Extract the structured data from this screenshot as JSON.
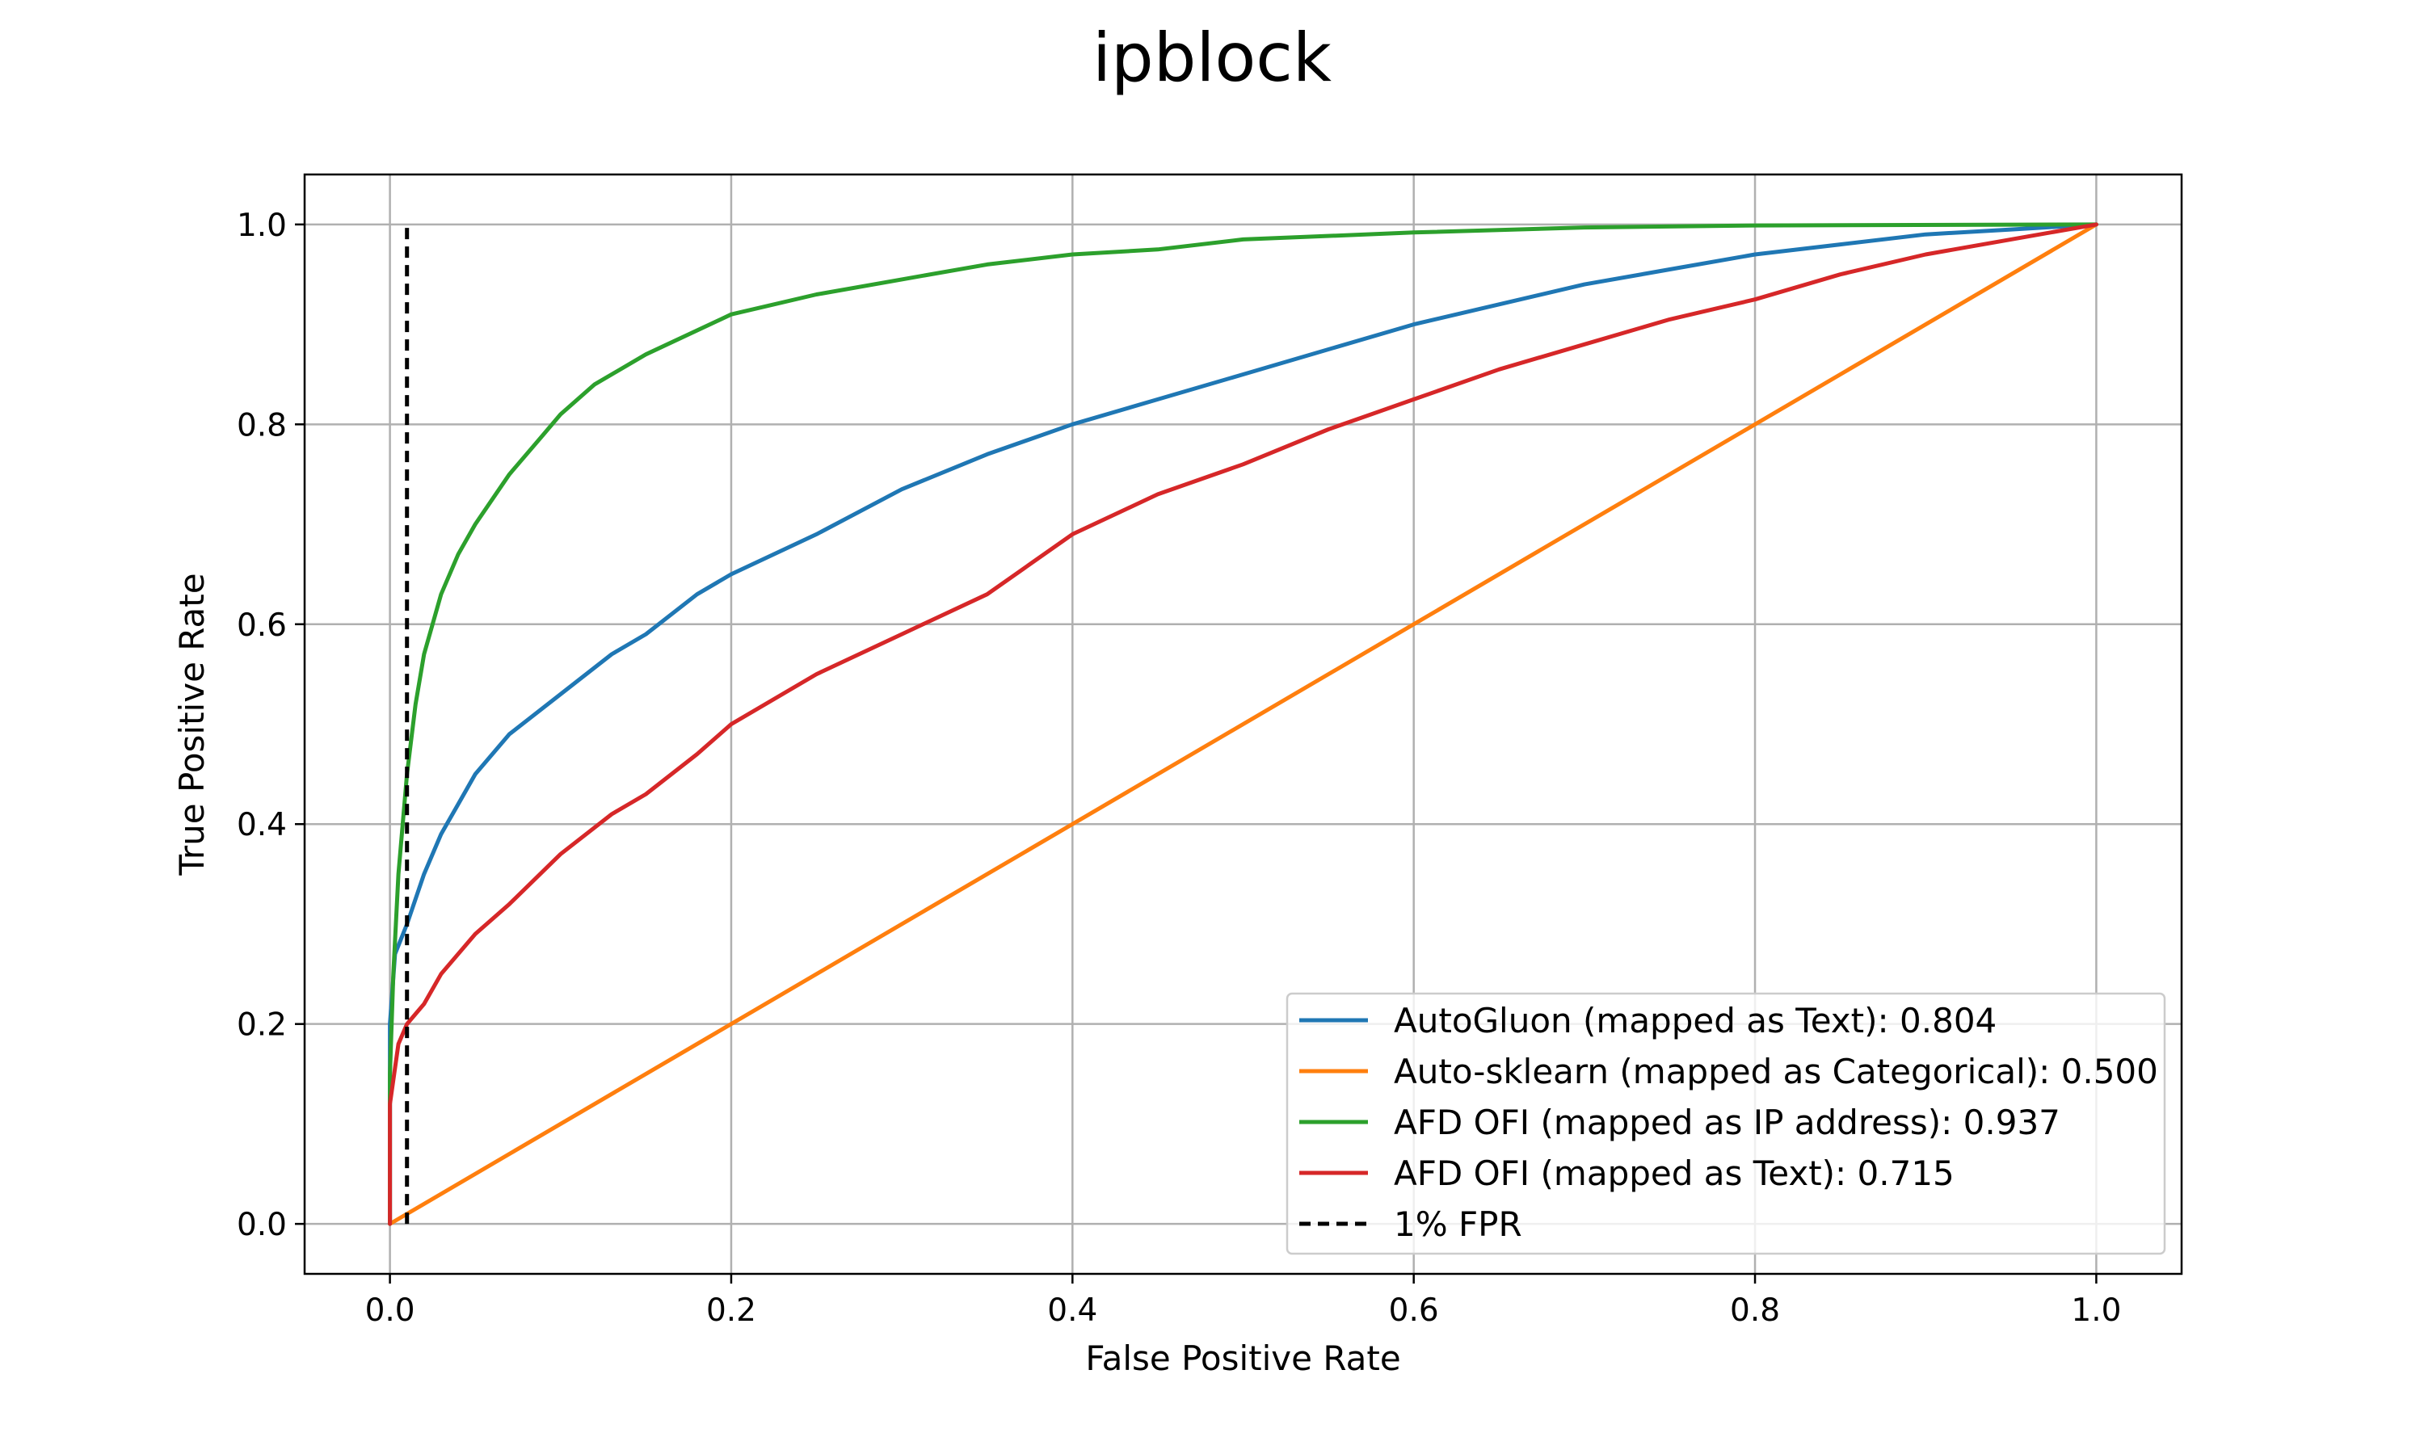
{
  "chart_data": {
    "type": "line",
    "title": "ipblock",
    "xlabel": "False Positive Rate",
    "ylabel": "True Positive Rate",
    "xlim": [
      -0.05,
      1.05
    ],
    "ylim": [
      -0.05,
      1.05
    ],
    "xticks": [
      "0.0",
      "0.2",
      "0.4",
      "0.6",
      "0.8",
      "1.0"
    ],
    "yticks": [
      "0.0",
      "0.2",
      "0.4",
      "0.6",
      "0.8",
      "1.0"
    ],
    "grid": true,
    "legend_position": "lower-right",
    "series": [
      {
        "name": "AutoGluon (mapped as Text): 0.804",
        "color": "#1f77b4",
        "points": [
          [
            0,
            0
          ],
          [
            0,
            0.2
          ],
          [
            0.003,
            0.27
          ],
          [
            0.01,
            0.3
          ],
          [
            0.02,
            0.35
          ],
          [
            0.03,
            0.39
          ],
          [
            0.04,
            0.42
          ],
          [
            0.05,
            0.45
          ],
          [
            0.07,
            0.49
          ],
          [
            0.1,
            0.53
          ],
          [
            0.13,
            0.57
          ],
          [
            0.15,
            0.59
          ],
          [
            0.18,
            0.63
          ],
          [
            0.2,
            0.65
          ],
          [
            0.25,
            0.69
          ],
          [
            0.3,
            0.735
          ],
          [
            0.35,
            0.77
          ],
          [
            0.4,
            0.8
          ],
          [
            0.45,
            0.825
          ],
          [
            0.5,
            0.85
          ],
          [
            0.55,
            0.875
          ],
          [
            0.6,
            0.9
          ],
          [
            0.65,
            0.92
          ],
          [
            0.7,
            0.94
          ],
          [
            0.75,
            0.955
          ],
          [
            0.8,
            0.97
          ],
          [
            0.85,
            0.98
          ],
          [
            0.9,
            0.99
          ],
          [
            0.95,
            0.995
          ],
          [
            1,
            1
          ]
        ]
      },
      {
        "name": "Auto-sklearn (mapped as Categorical): 0.500",
        "color": "#ff7f0e",
        "points": [
          [
            0,
            0
          ],
          [
            1,
            1
          ]
        ]
      },
      {
        "name": "AFD OFI (mapped as IP address): 0.937",
        "color": "#2ca02c",
        "points": [
          [
            0,
            0
          ],
          [
            0,
            0.15
          ],
          [
            0.002,
            0.25
          ],
          [
            0.005,
            0.35
          ],
          [
            0.01,
            0.45
          ],
          [
            0.015,
            0.52
          ],
          [
            0.02,
            0.57
          ],
          [
            0.03,
            0.63
          ],
          [
            0.04,
            0.67
          ],
          [
            0.05,
            0.7
          ],
          [
            0.07,
            0.75
          ],
          [
            0.09,
            0.79
          ],
          [
            0.1,
            0.81
          ],
          [
            0.12,
            0.84
          ],
          [
            0.15,
            0.87
          ],
          [
            0.2,
            0.91
          ],
          [
            0.25,
            0.93
          ],
          [
            0.3,
            0.945
          ],
          [
            0.35,
            0.96
          ],
          [
            0.4,
            0.97
          ],
          [
            0.45,
            0.975
          ],
          [
            0.5,
            0.985
          ],
          [
            0.6,
            0.992
          ],
          [
            0.7,
            0.997
          ],
          [
            0.8,
            0.999
          ],
          [
            1,
            1
          ]
        ]
      },
      {
        "name": "AFD OFI (mapped as Text): 0.715",
        "color": "#d62728",
        "points": [
          [
            0,
            0
          ],
          [
            0,
            0.12
          ],
          [
            0.005,
            0.18
          ],
          [
            0.01,
            0.2
          ],
          [
            0.02,
            0.22
          ],
          [
            0.03,
            0.25
          ],
          [
            0.05,
            0.29
          ],
          [
            0.07,
            0.32
          ],
          [
            0.1,
            0.37
          ],
          [
            0.13,
            0.41
          ],
          [
            0.15,
            0.43
          ],
          [
            0.18,
            0.47
          ],
          [
            0.2,
            0.5
          ],
          [
            0.25,
            0.55
          ],
          [
            0.3,
            0.59
          ],
          [
            0.35,
            0.63
          ],
          [
            0.4,
            0.69
          ],
          [
            0.45,
            0.73
          ],
          [
            0.5,
            0.76
          ],
          [
            0.55,
            0.795
          ],
          [
            0.6,
            0.825
          ],
          [
            0.65,
            0.855
          ],
          [
            0.7,
            0.88
          ],
          [
            0.75,
            0.905
          ],
          [
            0.8,
            0.925
          ],
          [
            0.85,
            0.95
          ],
          [
            0.9,
            0.97
          ],
          [
            0.95,
            0.985
          ],
          [
            1,
            1
          ]
        ]
      },
      {
        "name": "1% FPR",
        "color": "#000000",
        "style": "dashed",
        "points": [
          [
            0.01,
            0
          ],
          [
            0.01,
            1
          ]
        ]
      }
    ]
  }
}
